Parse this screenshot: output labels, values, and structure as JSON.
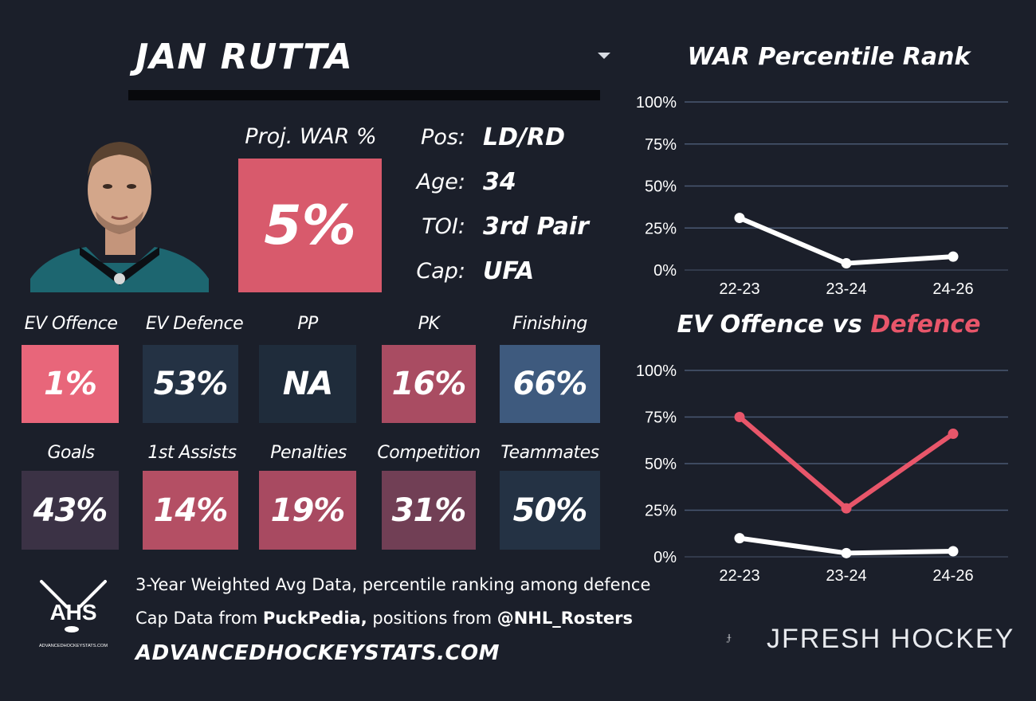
{
  "header": {
    "player_name": "JAN RUTTA"
  },
  "projection": {
    "label": "Proj. WAR %",
    "value": "5%"
  },
  "info": [
    {
      "key": "Pos:",
      "value": "LD/RD"
    },
    {
      "key": "Age:",
      "value": "34"
    },
    {
      "key": "TOI:",
      "value": "3rd Pair"
    },
    {
      "key": "Cap:",
      "value": "UFA"
    }
  ],
  "metrics_row1": [
    {
      "label": "EV Offence",
      "value": "1%",
      "color": "#e8667a"
    },
    {
      "label": "EV Defence",
      "value": "53%",
      "color": "#243244"
    },
    {
      "label": "PP",
      "value": "NA",
      "color": "#1f2c3b"
    },
    {
      "label": "PK",
      "value": "16%",
      "color": "#a94c62"
    },
    {
      "label": "Finishing",
      "value": "66%",
      "color": "#3e5a7e"
    }
  ],
  "metrics_row2": [
    {
      "label": "Goals",
      "value": "43%",
      "color": "#3b3245"
    },
    {
      "label": "1st Assists",
      "value": "14%",
      "color": "#b44f64"
    },
    {
      "label": "Penalties",
      "value": "19%",
      "color": "#a84a61"
    },
    {
      "label": "Competition",
      "value": "31%",
      "color": "#713f55"
    },
    {
      "label": "Teammates",
      "value": "50%",
      "color": "#243244"
    }
  ],
  "footer": {
    "line1": "3-Year Weighted Avg Data, percentile ranking among defence",
    "line2_prefix": "Cap Data from ",
    "line2_source": "PuckPedia,",
    "line2_middle": " positions from ",
    "line2_handle": "@NHL_Rosters",
    "site": "ADVANCEDHOCKEYSTATS.COM",
    "logo_text": "AHS",
    "logo_subtext": "ADVANCEDHOCKEYSTATS.COM"
  },
  "brand": {
    "name": "JFRESH HOCKEY"
  },
  "chart_data": [
    {
      "type": "line",
      "title": "WAR Percentile Rank",
      "categories": [
        "22-23",
        "23-24",
        "24-26"
      ],
      "series": [
        {
          "values": [
            31,
            4,
            8
          ],
          "color": "#ffffff"
        }
      ],
      "ylim": [
        0,
        100
      ],
      "yticks": [
        "0%",
        "25%",
        "50%",
        "75%",
        "100%"
      ],
      "grid": true
    },
    {
      "type": "line",
      "title": "EV Offence vs Defence",
      "title_parts": [
        "EV Offence vs ",
        "Defence"
      ],
      "categories": [
        "22-23",
        "23-24",
        "24-26"
      ],
      "series": [
        {
          "name": "EV Offence",
          "values": [
            10,
            2,
            3
          ],
          "color": "#ffffff"
        },
        {
          "name": "Defence",
          "values": [
            75,
            26,
            66
          ],
          "color": "#e8566a"
        }
      ],
      "ylim": [
        0,
        100
      ],
      "yticks": [
        "0%",
        "25%",
        "50%",
        "75%",
        "100%"
      ],
      "grid": true
    }
  ]
}
